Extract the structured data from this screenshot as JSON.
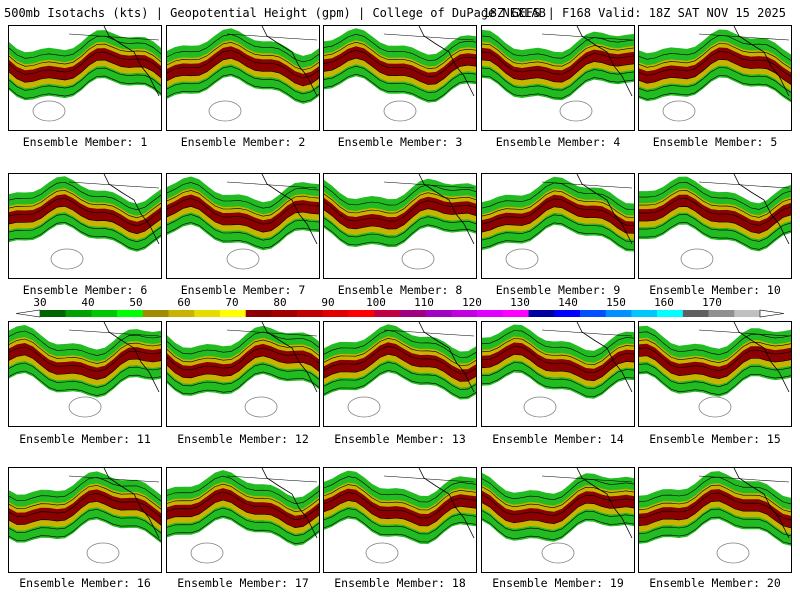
{
  "header": {
    "left": "500mb Isotachs (kts) | Geopotential Height (gpm) | College of DuPage NEXLAB",
    "right": "18Z GEFS | F168 Valid: 18Z SAT NOV 15 2025"
  },
  "members": [
    {
      "label": "Ensemble Member: 1"
    },
    {
      "label": "Ensemble Member: 2"
    },
    {
      "label": "Ensemble Member: 3"
    },
    {
      "label": "Ensemble Member: 4"
    },
    {
      "label": "Ensemble Member: 5"
    },
    {
      "label": "Ensemble Member: 6"
    },
    {
      "label": "Ensemble Member: 7"
    },
    {
      "label": "Ensemble Member: 8"
    },
    {
      "label": "Ensemble Member: 9"
    },
    {
      "label": "Ensemble Member: 10"
    },
    {
      "label": "Ensemble Member: 11"
    },
    {
      "label": "Ensemble Member: 12"
    },
    {
      "label": "Ensemble Member: 13"
    },
    {
      "label": "Ensemble Member: 14"
    },
    {
      "label": "Ensemble Member: 15"
    },
    {
      "label": "Ensemble Member: 16"
    },
    {
      "label": "Ensemble Member: 17"
    },
    {
      "label": "Ensemble Member: 18"
    },
    {
      "label": "Ensemble Member: 19"
    },
    {
      "label": "Ensemble Member: 20"
    }
  ],
  "colorbar": {
    "ticks": [
      "30",
      "40",
      "50",
      "60",
      "70",
      "80",
      "90",
      "100",
      "110",
      "120",
      "130",
      "140",
      "150",
      "160",
      "170"
    ],
    "colors": [
      "#006400",
      "#00a000",
      "#00c800",
      "#00ff00",
      "#a08c00",
      "#c8b400",
      "#e6dc00",
      "#ffff00",
      "#8b0000",
      "#a00000",
      "#c00000",
      "#e00000",
      "#ff0000",
      "#c00040",
      "#a00080",
      "#a000c0",
      "#c000e0",
      "#e000ff",
      "#ff00ff",
      "#0000a0",
      "#0000ff",
      "#0050ff",
      "#0090ff",
      "#00c8ff",
      "#00ffff",
      "#606060",
      "#909090",
      "#c0c0c0"
    ]
  },
  "map_colors": {
    "jet_weak": "#22bb22",
    "jet_mid": "#c8b400",
    "jet_core": "#8b0000",
    "contour": "#000000",
    "coast": "#000000",
    "low_contour": "#808080"
  }
}
